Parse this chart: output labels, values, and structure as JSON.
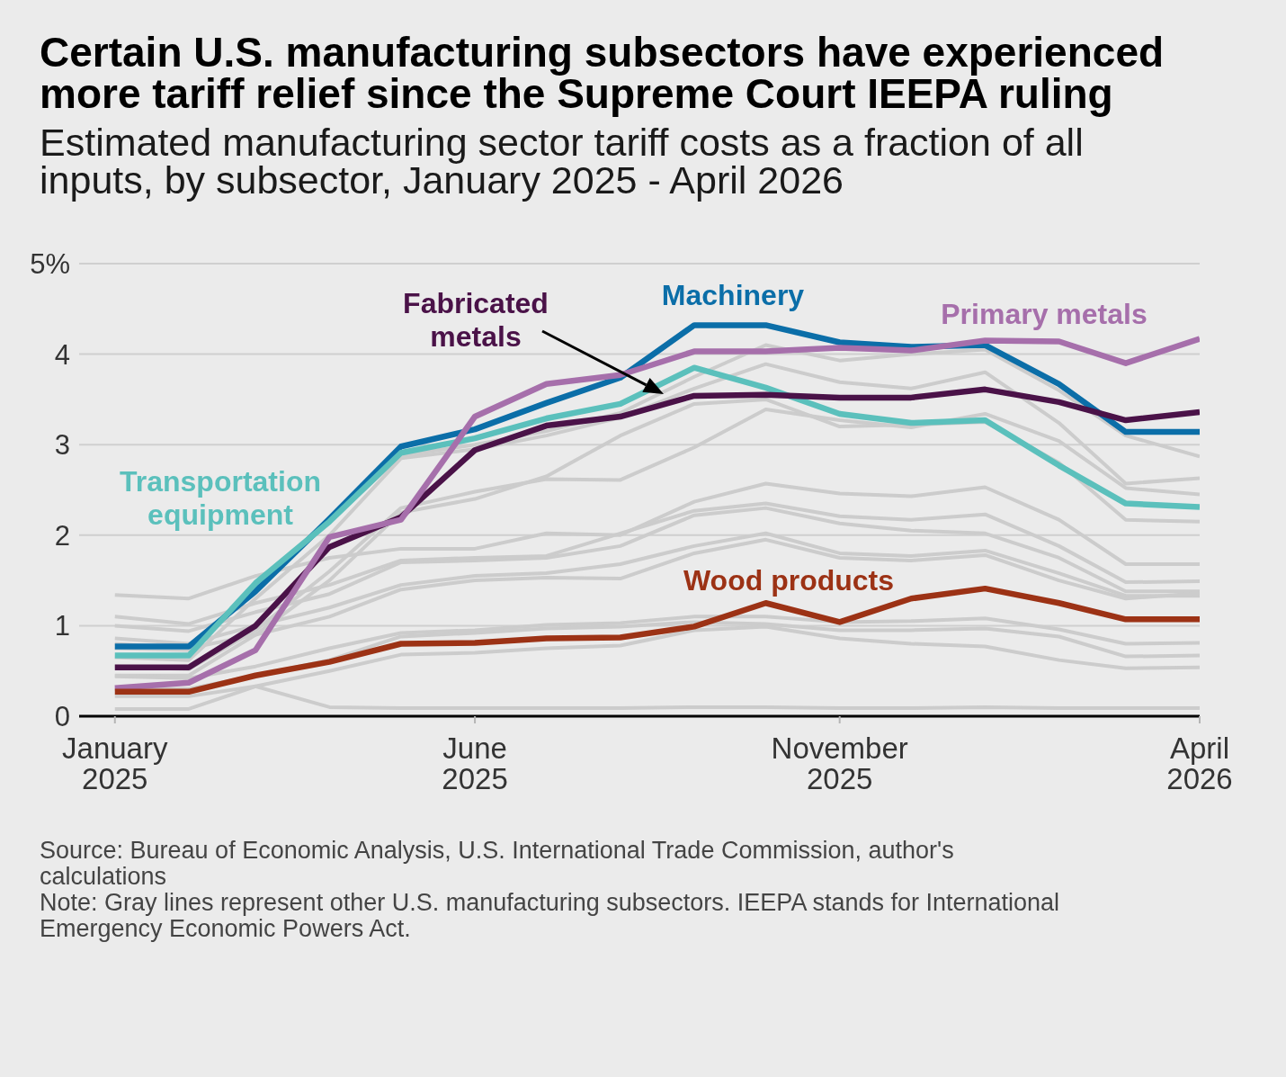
{
  "chart_data": {
    "type": "line",
    "title": "Certain U.S. manufacturing subsectors have experienced more tariff relief since the Supreme Court IEEPA ruling",
    "subtitle": "Estimated manufacturing sector tariff costs as a fraction of all inputs, by subsector, January 2025 - April 2026",
    "annotations": [
      "Source: Bureau of Economic Analysis, U.S. International Trade Commission, author's calculations",
      "Note: Gray lines represent other U.S. manufacturing subsectors. IEEPA stands for International Emergency Economic Powers Act."
    ],
    "x": [
      "2025-01",
      "2025-02",
      "2025-03",
      "2025-04",
      "2025-05",
      "2025-06",
      "2025-07",
      "2025-08",
      "2025-09",
      "2025-10",
      "2025-11",
      "2025-12",
      "2026-01",
      "2026-02",
      "2026-03",
      "2026-04"
    ],
    "xlim": [
      "2024-12-17",
      "2026-04"
    ],
    "xticks": [
      {
        "value": "2025-01",
        "label": "January 2025"
      },
      {
        "value": "2025-06",
        "label": "June 2025"
      },
      {
        "value": "2025-11",
        "label": "November 2025"
      },
      {
        "value": "2026-04",
        "label": "April 2026"
      }
    ],
    "ylim": [
      0,
      5
    ],
    "yticks": [
      0,
      1,
      2,
      3,
      4,
      {
        "value": 5,
        "label": "5%"
      }
    ],
    "grid": "y",
    "series": [
      {
        "color": "#cccccc",
        "values": [
          0.75,
          0.73,
          1.4,
          2.15,
          2.88,
          3.0,
          3.15,
          3.35,
          3.75,
          4.1,
          3.93,
          4.0,
          4.05,
          3.6,
          3.1,
          2.87
        ]
      },
      {
        "color": "#cccccc",
        "values": [
          0.65,
          0.62,
          1.3,
          2.0,
          2.85,
          2.95,
          3.1,
          3.3,
          3.62,
          3.89,
          3.69,
          3.62,
          3.8,
          3.24,
          2.57,
          2.63
        ]
      },
      {
        "color": "#cccccc",
        "values": [
          0.55,
          0.52,
          0.95,
          1.6,
          2.3,
          2.48,
          2.62,
          2.61,
          2.97,
          3.39,
          3.27,
          3.19,
          3.34,
          3.04,
          2.52,
          2.45
        ]
      },
      {
        "color": "#cccccc",
        "values": [
          0.45,
          0.45,
          0.9,
          1.5,
          2.25,
          2.4,
          2.65,
          3.1,
          3.45,
          3.5,
          3.2,
          3.22,
          3.25,
          2.8,
          2.17,
          2.15
        ]
      },
      {
        "color": "#cccccc",
        "values": [
          1.34,
          1.3,
          1.55,
          1.75,
          1.85,
          1.85,
          2.02,
          2.0,
          2.37,
          2.57,
          2.46,
          2.43,
          2.53,
          2.17,
          1.68,
          1.68
        ]
      },
      {
        "color": "#cccccc",
        "values": [
          1.1,
          1.02,
          1.25,
          1.45,
          1.72,
          1.75,
          1.77,
          2.02,
          2.27,
          2.35,
          2.21,
          2.17,
          2.23,
          1.88,
          1.48,
          1.49
        ]
      },
      {
        "color": "#cccccc",
        "values": [
          1.0,
          0.94,
          1.15,
          1.35,
          1.7,
          1.72,
          1.75,
          1.88,
          2.22,
          2.3,
          2.13,
          2.05,
          2.02,
          1.75,
          1.38,
          1.38
        ]
      },
      {
        "color": "#cccccc",
        "values": [
          0.86,
          0.8,
          1.0,
          1.2,
          1.45,
          1.55,
          1.58,
          1.68,
          1.88,
          2.02,
          1.8,
          1.77,
          1.83,
          1.58,
          1.33,
          1.33
        ]
      },
      {
        "color": "#cccccc",
        "values": [
          0.8,
          0.75,
          0.9,
          1.1,
          1.4,
          1.5,
          1.53,
          1.52,
          1.8,
          1.95,
          1.75,
          1.72,
          1.78,
          1.5,
          1.3,
          1.36
        ]
      },
      {
        "color": "#cccccc",
        "values": [
          0.44,
          0.42,
          0.55,
          0.75,
          0.92,
          0.95,
          1.01,
          1.03,
          1.1,
          1.1,
          1.04,
          1.05,
          1.08,
          0.96,
          0.8,
          0.81
        ]
      },
      {
        "color": "#cccccc",
        "values": [
          0.3,
          0.3,
          0.45,
          0.62,
          0.88,
          0.92,
          0.97,
          0.99,
          1.04,
          1.02,
          0.95,
          0.95,
          0.97,
          0.88,
          0.66,
          0.67
        ]
      },
      {
        "color": "#cccccc",
        "values": [
          0.08,
          0.08,
          0.33,
          0.5,
          0.68,
          0.7,
          0.75,
          0.78,
          0.95,
          0.99,
          0.86,
          0.8,
          0.77,
          0.62,
          0.53,
          0.54
        ]
      },
      {
        "color": "#cccccc",
        "values": [
          0.22,
          0.22,
          0.33,
          0.1,
          0.09,
          0.09,
          0.09,
          0.09,
          0.1,
          0.1,
          0.09,
          0.09,
          0.1,
          0.09,
          0.09,
          0.09
        ]
      },
      {
        "name": "Machinery",
        "color": "#0b6ea8",
        "values": [
          0.77,
          0.77,
          1.38,
          2.18,
          2.98,
          3.17,
          3.46,
          3.74,
          4.32,
          4.32,
          4.13,
          4.08,
          4.1,
          3.67,
          3.14,
          3.14
        ]
      },
      {
        "name": "Transportation equipment",
        "color": "#5bc0bc",
        "values": [
          0.67,
          0.67,
          1.47,
          2.15,
          2.91,
          3.07,
          3.29,
          3.45,
          3.85,
          3.63,
          3.34,
          3.24,
          3.27,
          2.77,
          2.35,
          2.31
        ]
      },
      {
        "name": "Fabricated metals",
        "color": "#4a1248",
        "values": [
          0.54,
          0.54,
          1.0,
          1.87,
          2.2,
          2.94,
          3.21,
          3.31,
          3.54,
          3.55,
          3.52,
          3.52,
          3.61,
          3.47,
          3.27,
          3.36
        ]
      },
      {
        "name": "Primary metals",
        "color": "#a66fab",
        "values": [
          0.31,
          0.37,
          0.73,
          1.98,
          2.17,
          3.31,
          3.67,
          3.77,
          4.03,
          4.03,
          4.07,
          4.04,
          4.15,
          4.14,
          3.9,
          4.17
        ]
      },
      {
        "name": "Wood products",
        "color": "#9c3215",
        "values": [
          0.27,
          0.27,
          0.45,
          0.6,
          0.8,
          0.81,
          0.86,
          0.87,
          0.99,
          1.25,
          1.04,
          1.3,
          1.41,
          1.25,
          1.07,
          1.07
        ]
      }
    ]
  }
}
